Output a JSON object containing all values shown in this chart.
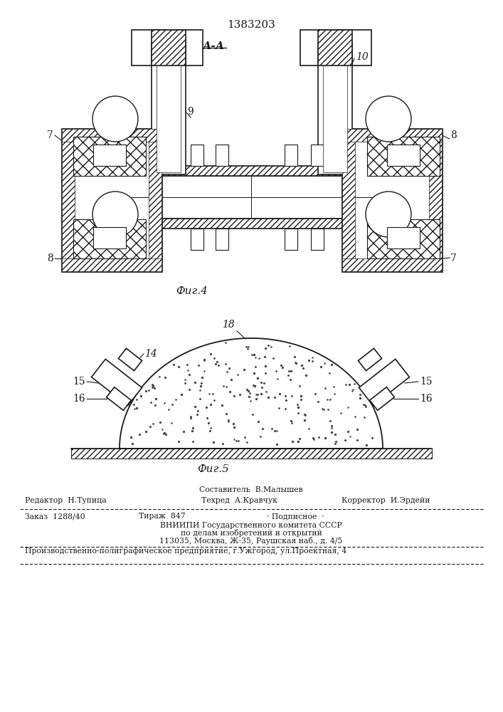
{
  "title_number": "1383203",
  "bg_color": "#ffffff",
  "line_color": "#1a1a1a",
  "fig4_caption": "Фиг.4",
  "fig5_caption": "Фиг.5",
  "aa_label": "А-А",
  "label_10": "10",
  "label_9": "9",
  "label_7_lt": "7",
  "label_7_rb": "7",
  "label_8_rt": "8",
  "label_8_lb": "8",
  "label_14": "14",
  "label_15l": "15",
  "label_15r": "15",
  "label_16l": "16",
  "label_16r": "16",
  "label_18": "18",
  "footer_row1_center": "Составитель  В.Малышев",
  "footer_row2_left": "Редактор  Н.Тупица",
  "footer_row2_center": "Техред  А.Кравчук",
  "footer_row2_right": "Корректор  И.Эрдейи",
  "footer_row3_a": "Заказ  1288/40",
  "footer_row3_b": "Тираж  847",
  "footer_row3_c": "· Подписное  ·",
  "footer_row4": "ВНИИПИ Государственного комитета СССР",
  "footer_row5": "по делам изобретений и открытий",
  "footer_row6": "113035, Москва, Ж-35, Раушская наб., д. 4/5",
  "footer_row7": "Производственно-полиграфическое предприятие, г.Ужгород, ул.Проектная, 4"
}
